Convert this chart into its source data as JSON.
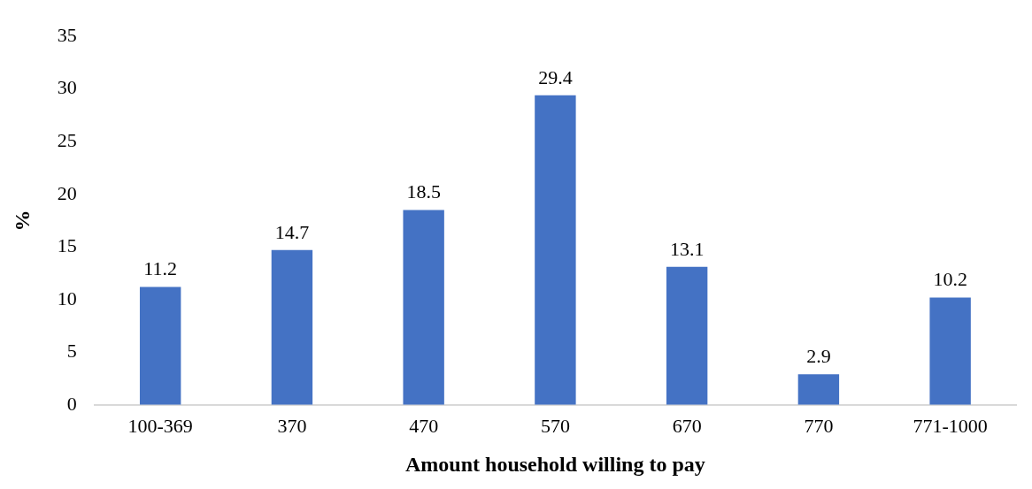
{
  "chart_data": {
    "type": "bar",
    "xlabel": "Amount household willing to pay",
    "ylabel": "%",
    "categories": [
      "100-369",
      "370",
      "470",
      "570",
      "670",
      "770",
      "771-1000"
    ],
    "values": [
      11.2,
      14.7,
      18.5,
      29.4,
      13.1,
      2.9,
      10.2
    ],
    "color": "#4472c4",
    "ylim": [
      0,
      35
    ],
    "yticks": [
      0,
      5,
      10,
      15,
      20,
      25,
      30,
      35
    ],
    "grid": false,
    "legend": false,
    "data_labels": true
  }
}
